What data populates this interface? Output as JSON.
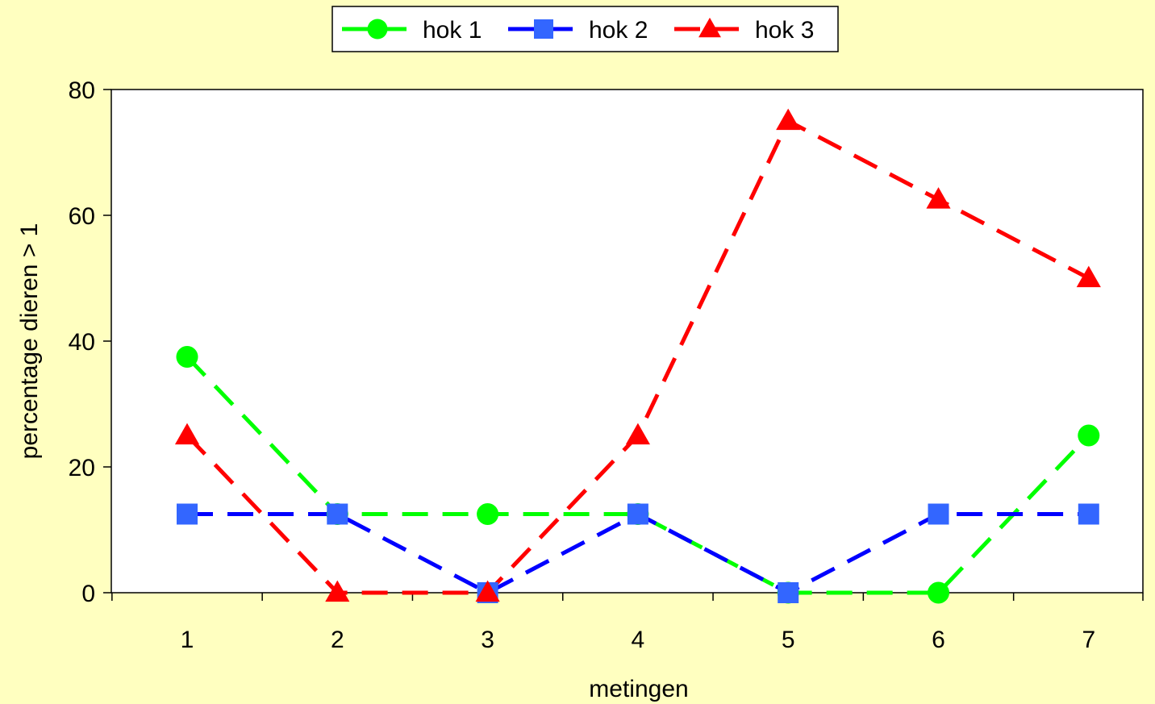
{
  "chart_data": {
    "type": "line",
    "title": "",
    "xlabel": "metingen",
    "ylabel": "percentage dieren > 1",
    "categories": [
      "1",
      "2",
      "3",
      "4",
      "5",
      "6",
      "7"
    ],
    "ylim": [
      0,
      80
    ],
    "yticks": [
      0,
      20,
      40,
      60,
      80
    ],
    "grid": false,
    "legend_position": "top",
    "plot_background": "#FFFFFF",
    "page_background": "#FFFFC0",
    "series": [
      {
        "name": "hok 1",
        "color": "#00FF00",
        "marker": "circle",
        "values": [
          37.5,
          12.5,
          12.5,
          12.5,
          0,
          0,
          25
        ]
      },
      {
        "name": "hok 2",
        "color": "#0000FF",
        "marker_color": "#3366FF",
        "marker": "square",
        "values": [
          12.5,
          12.5,
          0,
          12.5,
          0,
          12.5,
          12.5
        ]
      },
      {
        "name": "hok 3",
        "color": "#FF0000",
        "marker": "triangle",
        "values": [
          25,
          0,
          0,
          25,
          75,
          62.5,
          50
        ]
      }
    ]
  }
}
